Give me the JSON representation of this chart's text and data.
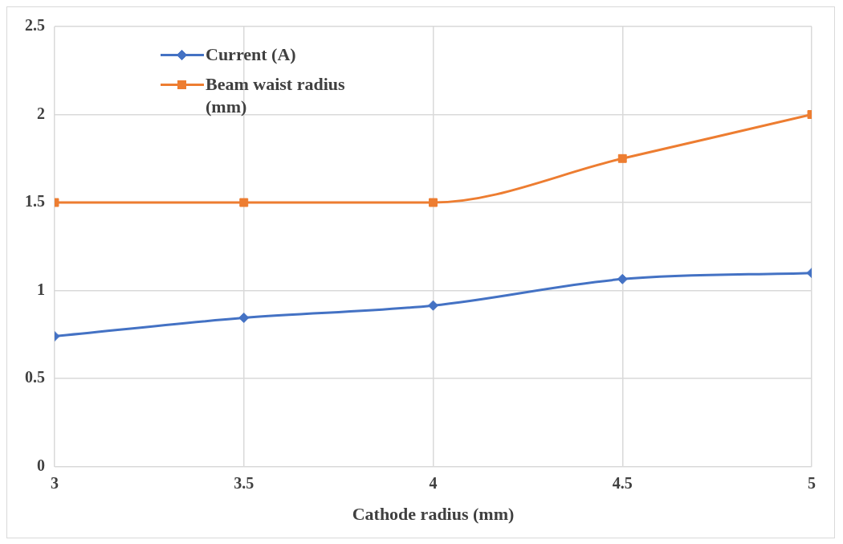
{
  "chart_data": {
    "type": "line",
    "xlabel": "Cathode radius (mm)",
    "x": [
      3,
      3.5,
      4,
      4.5,
      5
    ],
    "series": [
      {
        "name": "Current (A)",
        "color": "#4472c4",
        "marker": "diamond",
        "values": [
          0.74,
          0.845,
          0.915,
          1.065,
          1.1
        ]
      },
      {
        "name": "Beam waist radius (mm)",
        "color": "#ed7d31",
        "marker": "square",
        "values": [
          1.5,
          1.5,
          1.5,
          1.75,
          2
        ]
      }
    ],
    "xlim": [
      3,
      5
    ],
    "xticks": [
      3,
      3.5,
      4,
      4.5,
      5
    ],
    "ylim": [
      0,
      2.5
    ],
    "yticks": [
      0,
      0.5,
      1,
      1.5,
      2,
      2.5
    ],
    "grid": true,
    "legend": "top left"
  }
}
